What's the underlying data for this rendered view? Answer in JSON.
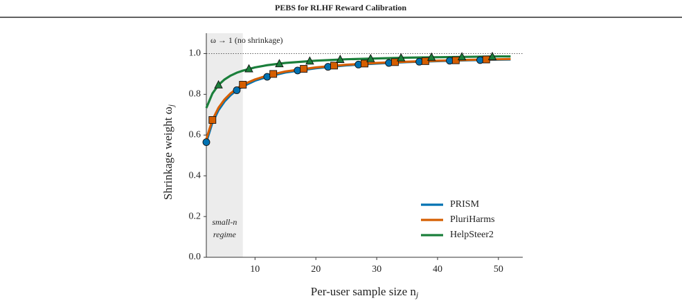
{
  "chart_data": {
    "type": "line",
    "title": "PEBS for RLHF Reward Calibration",
    "xlabel": {
      "text": "Per-user sample size n",
      "sub": "j"
    },
    "ylabel": {
      "text": "Shrinkage weight ω",
      "sub": "j"
    },
    "xlim": [
      2,
      54
    ],
    "ylim": [
      0,
      1.1
    ],
    "xticks": [
      10,
      20,
      30,
      40,
      50
    ],
    "yticks": [
      {
        "value": 0,
        "label": "0.0"
      },
      0.2,
      0.4,
      0.6,
      0.8,
      {
        "value": 1,
        "label": "1.0"
      }
    ],
    "reference_y": 1,
    "reference_label": "ω → 1 (no shrinkage)",
    "shade_x": [
      2,
      8
    ],
    "shade_label": [
      "small-n",
      "regime"
    ],
    "legend": "lower right",
    "series": [
      {
        "name": "PRISM",
        "color": "#0072b2",
        "marker": "circle",
        "x": [
          2,
          3,
          4,
          5,
          6,
          7,
          8,
          10,
          12,
          15,
          20,
          25,
          30,
          35,
          40,
          45,
          50,
          52
        ],
        "values": [
          0.565,
          0.661,
          0.722,
          0.765,
          0.796,
          0.82,
          0.839,
          0.867,
          0.886,
          0.907,
          0.928,
          0.942,
          0.951,
          0.958,
          0.963,
          0.967,
          0.97,
          0.971
        ],
        "marker_x": [
          2,
          7,
          12,
          17,
          22,
          27,
          32,
          37,
          42,
          47
        ],
        "marker_values": [
          0.565,
          0.82,
          0.886,
          0.917,
          0.935,
          0.946,
          0.954,
          0.96,
          0.965,
          0.968
        ]
      },
      {
        "name": "PluriHarms",
        "color": "#d55e00",
        "marker": "square",
        "x": [
          2,
          3,
          4,
          5,
          6,
          7,
          8,
          10,
          12,
          15,
          20,
          25,
          30,
          35,
          40,
          45,
          50,
          52
        ],
        "values": [
          0.58,
          0.674,
          0.734,
          0.775,
          0.805,
          0.828,
          0.847,
          0.873,
          0.892,
          0.912,
          0.932,
          0.945,
          0.954,
          0.96,
          0.965,
          0.969,
          0.972,
          0.973
        ],
        "marker_x": [
          3,
          8,
          13,
          18,
          23,
          28,
          33,
          38,
          43,
          48
        ],
        "marker_values": [
          0.674,
          0.847,
          0.9,
          0.925,
          0.941,
          0.951,
          0.958,
          0.963,
          0.967,
          0.971
        ]
      },
      {
        "name": "HelpSteer2",
        "color": "#1b7f3b",
        "marker": "triangle",
        "x": [
          2,
          3,
          4,
          5,
          6,
          7,
          8,
          10,
          12,
          15,
          20,
          25,
          30,
          35,
          40,
          45,
          50,
          52
        ],
        "values": [
          0.733,
          0.804,
          0.846,
          0.873,
          0.892,
          0.906,
          0.916,
          0.932,
          0.943,
          0.954,
          0.965,
          0.972,
          0.976,
          0.98,
          0.982,
          0.984,
          0.986,
          0.986
        ],
        "marker_x": [
          4,
          9,
          14,
          19,
          24,
          29,
          34,
          39,
          44,
          49
        ],
        "marker_values": [
          0.846,
          0.925,
          0.95,
          0.963,
          0.971,
          0.975,
          0.979,
          0.982,
          0.984,
          0.985
        ]
      }
    ]
  }
}
